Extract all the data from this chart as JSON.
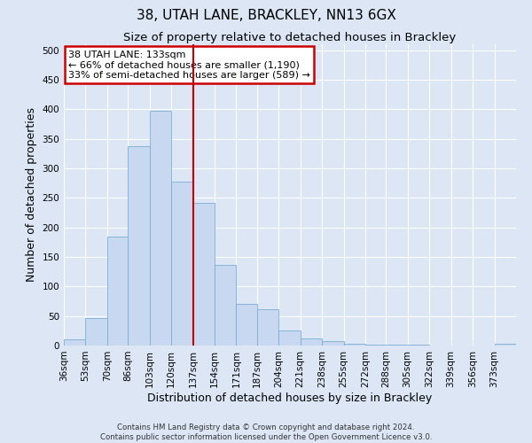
{
  "title": "38, UTAH LANE, BRACKLEY, NN13 6GX",
  "subtitle": "Size of property relative to detached houses in Brackley",
  "xlabel": "Distribution of detached houses by size in Brackley",
  "ylabel": "Number of detached properties",
  "bin_labels": [
    "36sqm",
    "53sqm",
    "70sqm",
    "86sqm",
    "103sqm",
    "120sqm",
    "137sqm",
    "154sqm",
    "171sqm",
    "187sqm",
    "204sqm",
    "221sqm",
    "238sqm",
    "255sqm",
    "272sqm",
    "288sqm",
    "305sqm",
    "322sqm",
    "339sqm",
    "356sqm",
    "373sqm"
  ],
  "bin_edges": [
    36,
    53,
    70,
    86,
    103,
    120,
    137,
    154,
    171,
    187,
    204,
    221,
    238,
    255,
    272,
    288,
    305,
    322,
    339,
    356,
    373,
    390
  ],
  "bar_heights": [
    10,
    47,
    185,
    338,
    398,
    278,
    242,
    137,
    70,
    62,
    25,
    12,
    8,
    3,
    2,
    2,
    1,
    0,
    0,
    0,
    3
  ],
  "bar_color": "#c8d8f0",
  "bar_edge_color": "#7bafd4",
  "vline_x": 137,
  "vline_color": "#cc0000",
  "ylim": [
    0,
    510
  ],
  "yticks": [
    0,
    50,
    100,
    150,
    200,
    250,
    300,
    350,
    400,
    450,
    500
  ],
  "annotation_title": "38 UTAH LANE: 133sqm",
  "annotation_line1": "← 66% of detached houses are smaller (1,190)",
  "annotation_line2": "33% of semi-detached houses are larger (589) →",
  "annotation_box_color": "#ffffff",
  "annotation_box_edge": "#cc0000",
  "footer_line1": "Contains HM Land Registry data © Crown copyright and database right 2024.",
  "footer_line2": "Contains public sector information licensed under the Open Government Licence v3.0.",
  "background_color": "#dce6f5",
  "plot_background": "#dce6f5",
  "grid_color": "#ffffff",
  "title_fontsize": 11,
  "subtitle_fontsize": 9.5,
  "tick_labelsize": 7.5,
  "axis_label_fontsize": 9
}
